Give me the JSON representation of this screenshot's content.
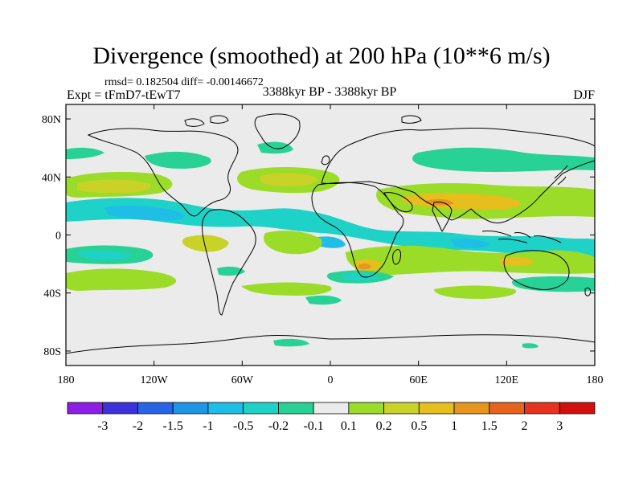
{
  "title": "Divergence (smoothed) at 200 hPa (10**6 m/s)",
  "stats": "rmsd= 0.182504  diff= -0.00146672",
  "experiment": "Expt = tFmD7-tEwT7",
  "period": "3388kyr BP - 3388kyr BP",
  "season": "DJF",
  "map": {
    "lat_labels": [
      "80N",
      "40N",
      "0",
      "40S",
      "80S"
    ],
    "lat_values": [
      80,
      40,
      0,
      -40,
      -80
    ],
    "lon_labels": [
      "180",
      "120W",
      "60W",
      "0",
      "60E",
      "120E",
      "180"
    ],
    "lon_values": [
      -180,
      -120,
      -60,
      0,
      60,
      120,
      180
    ],
    "lat_range": [
      -90,
      90
    ],
    "lon_range": [
      -180,
      180
    ]
  },
  "colorbar": {
    "labels": [
      "-3",
      "-2",
      "-1.5",
      "-1",
      "-0.5",
      "-0.2",
      "-0.1",
      "0.1",
      "0.2",
      "0.5",
      "1",
      "1.5",
      "2",
      "3"
    ],
    "colors": [
      "#8c1ee6",
      "#3c32dc",
      "#2864e6",
      "#1e96e6",
      "#1ebee6",
      "#1ed2c8",
      "#28d296",
      "#ebebeb",
      "#9bdc28",
      "#c8d228",
      "#e6be1e",
      "#e6961e",
      "#e6641e",
      "#e6321e",
      "#d20f0f"
    ]
  },
  "colors": {
    "background": "#ebebeb",
    "coast": "#000000",
    "neutral": "#ebebeb",
    "neg_weak": "#28d296",
    "neg_mid": "#1ed2c8",
    "neg_strong": "#1ebee6",
    "neg_stronger": "#1e96e6",
    "pos_weak": "#9bdc28",
    "pos_mid": "#c8d228",
    "pos_strong": "#e6be1e",
    "pos_stronger": "#e6961e"
  }
}
